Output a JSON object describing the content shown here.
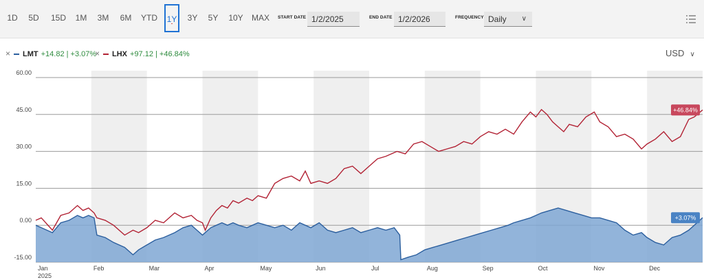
{
  "toolbar": {
    "ranges": [
      "1D",
      "5D",
      "15D",
      "1M",
      "3M",
      "6M",
      "YTD",
      "1Y",
      "3Y",
      "5Y",
      "10Y",
      "MAX"
    ],
    "active_range": "1Y",
    "start_date_label": "START DATE",
    "start_date_value": "1/2/2025",
    "end_date_label": "END DATE",
    "end_date_value": "1/2/2026",
    "frequency_label": "FREQUENCY",
    "frequency_value": "Daily",
    "list_icon": "list-settings-icon"
  },
  "legend": [
    {
      "ticker": "LMT",
      "change": "+14.82 | +3.07%",
      "color": "#2c5f9e"
    },
    {
      "ticker": "LHX",
      "change": "+97.12 | +46.84%",
      "color": "#b22234"
    }
  ],
  "currency": {
    "label": "USD",
    "chevron": "∨"
  },
  "chart_data": {
    "type": "line",
    "ylim": [
      -15,
      60
    ],
    "yticks": [
      "60.00",
      "45.00",
      "30.00",
      "15.00",
      "0.00",
      "-15.00"
    ],
    "xticks": [
      "Jan",
      "Feb",
      "Mar",
      "Apr",
      "May",
      "Jun",
      "Jul",
      "Aug",
      "Sep",
      "Oct",
      "Nov",
      "Dec"
    ],
    "year_label": "2025",
    "series": [
      {
        "name": "LHX",
        "color": "#b22234",
        "end_label": "+46.84%",
        "x": [
          0,
          0.1,
          0.3,
          0.45,
          0.6,
          0.75,
          0.85,
          0.95,
          1.05,
          1.1,
          1.25,
          1.4,
          1.6,
          1.75,
          1.85,
          2.0,
          2.15,
          2.3,
          2.5,
          2.65,
          2.8,
          2.9,
          3.0,
          3.05,
          3.15,
          3.25,
          3.35,
          3.45,
          3.55,
          3.65,
          3.8,
          3.9,
          4.0,
          4.15,
          4.3,
          4.45,
          4.6,
          4.75,
          4.85,
          4.95,
          5.1,
          5.25,
          5.4,
          5.55,
          5.7,
          5.85,
          6.0,
          6.15,
          6.3,
          6.5,
          6.65,
          6.8,
          6.95,
          7.1,
          7.25,
          7.4,
          7.55,
          7.7,
          7.85,
          8.0,
          8.15,
          8.3,
          8.45,
          8.6,
          8.75,
          8.9,
          9.0,
          9.1,
          9.2,
          9.3,
          9.4,
          9.5,
          9.6,
          9.75,
          9.9,
          10.05,
          10.15,
          10.3,
          10.45,
          10.6,
          10.75,
          10.9,
          11.0,
          11.15,
          11.3,
          11.45,
          11.6,
          11.75,
          11.85,
          12.0
        ],
        "y": [
          2,
          3,
          -2,
          4,
          5,
          8,
          6,
          7,
          5,
          3,
          2,
          0,
          -4,
          -2,
          -3,
          -1,
          2,
          1,
          5,
          3,
          4,
          2,
          1,
          -2,
          3,
          6,
          8,
          7,
          10,
          9,
          11,
          10,
          12,
          11,
          17,
          19,
          20,
          18,
          22,
          17,
          18,
          17,
          19,
          23,
          24,
          21,
          24,
          27,
          28,
          30,
          29,
          33,
          34,
          32,
          30,
          31,
          32,
          34,
          33,
          36,
          38,
          37,
          39,
          37,
          42,
          46,
          44,
          47,
          45,
          42,
          40,
          38,
          41,
          40,
          44,
          46,
          42,
          40,
          36,
          37,
          35,
          31,
          33,
          35,
          38,
          34,
          36,
          43,
          44,
          46.84
        ]
      },
      {
        "name": "LMT",
        "color": "#2c5f9e",
        "end_label": "+3.07%",
        "x": [
          0,
          0.1,
          0.3,
          0.45,
          0.6,
          0.75,
          0.85,
          0.95,
          1.05,
          1.1,
          1.25,
          1.4,
          1.6,
          1.75,
          1.85,
          2.0,
          2.15,
          2.3,
          2.5,
          2.65,
          2.8,
          2.9,
          3.0,
          3.05,
          3.15,
          3.25,
          3.35,
          3.45,
          3.55,
          3.65,
          3.8,
          3.9,
          4.0,
          4.15,
          4.3,
          4.45,
          4.6,
          4.75,
          4.85,
          4.95,
          5.1,
          5.25,
          5.4,
          5.55,
          5.7,
          5.85,
          6.0,
          6.15,
          6.3,
          6.45,
          6.55,
          6.57,
          6.7,
          6.85,
          7.0,
          7.15,
          7.3,
          7.45,
          7.6,
          7.75,
          7.9,
          8.05,
          8.2,
          8.35,
          8.5,
          8.6,
          8.75,
          8.9,
          9.0,
          9.1,
          9.25,
          9.4,
          9.55,
          9.7,
          9.85,
          10.0,
          10.15,
          10.3,
          10.45,
          10.6,
          10.75,
          10.9,
          11.0,
          11.15,
          11.3,
          11.45,
          11.6,
          11.75,
          11.85,
          12.0
        ],
        "y": [
          0,
          -1,
          -3,
          1,
          2,
          4,
          3,
          4,
          3,
          -4,
          -5,
          -7,
          -9,
          -12,
          -10,
          -8,
          -6,
          -5,
          -3,
          -1,
          0,
          -2,
          -4,
          -3,
          -1,
          0,
          1,
          0,
          1,
          0,
          -1,
          0,
          1,
          0,
          -1,
          0,
          -2,
          1,
          0,
          -1,
          1,
          -2,
          -3,
          -2,
          -1,
          -3,
          -2,
          -1,
          -2,
          -1,
          -4,
          -14,
          -13,
          -12,
          -10,
          -9,
          -8,
          -7,
          -6,
          -5,
          -4,
          -3,
          -2,
          -1,
          0,
          1,
          2,
          3,
          4,
          5,
          6,
          7,
          6,
          5,
          4,
          3,
          3,
          2,
          1,
          -2,
          -4,
          -3,
          -5,
          -7,
          -8,
          -5,
          -4,
          -2,
          0,
          3.07
        ]
      }
    ]
  }
}
